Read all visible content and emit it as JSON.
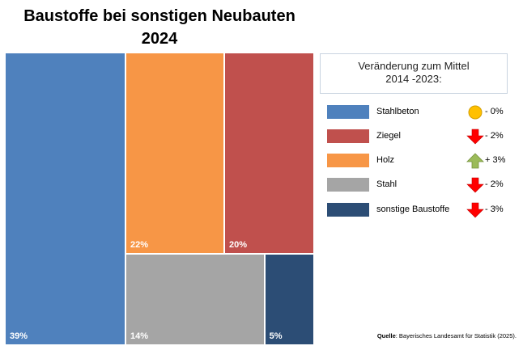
{
  "title_line1": "Baustoffe bei sonstigen Neubauten",
  "title_line2": "2024",
  "chart_data": {
    "type": "treemap",
    "title": "Baustoffe bei sonstigen Neubauten 2024",
    "unit": "%",
    "categories": [
      "Stahlbeton",
      "Holz",
      "Ziegel",
      "Stahl",
      "sonstige Baustoffe"
    ],
    "values": [
      39,
      22,
      20,
      14,
      5
    ],
    "value_labels": [
      "39%",
      "22%",
      "20%",
      "14%",
      "5%"
    ],
    "colors": [
      "#4f81bd",
      "#f79646",
      "#c0504d",
      "#a5a5a5",
      "#2c4d75"
    ]
  },
  "legend": {
    "title_line1": "Veränderung zum Mittel",
    "title_line2": "2014 -2023:",
    "items": [
      {
        "label": "Stahlbeton",
        "change": "- 0%",
        "icon": "neutral-circle-icon",
        "icon_color": "#ffc000"
      },
      {
        "label": "Ziegel",
        "change": "- 2%",
        "icon": "arrow-down-icon",
        "icon_color": "#ff0000"
      },
      {
        "label": "Holz",
        "change": "+ 3%",
        "icon": "arrow-up-icon",
        "icon_color": "#9bbb59"
      },
      {
        "label": "Stahl",
        "change": "- 2%",
        "icon": "arrow-down-icon",
        "icon_color": "#ff0000"
      },
      {
        "label": "sonstige Baustoffe",
        "change": "- 3%",
        "icon": "arrow-down-icon",
        "icon_color": "#ff0000"
      }
    ]
  },
  "source": {
    "label": "Quelle",
    "text": ": Bayerisches Landesamt für Statistik (2025)."
  }
}
